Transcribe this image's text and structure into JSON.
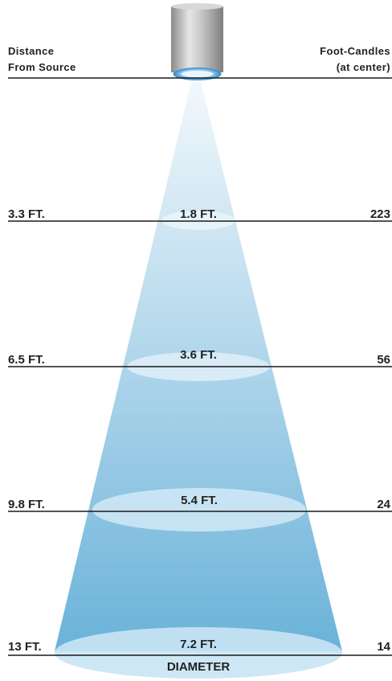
{
  "header": {
    "left_line1": "Distance",
    "left_line2": "From Source",
    "right_line1": "Foot-Candles",
    "right_line2": "(at center)"
  },
  "rows": [
    {
      "distance": "3.3 FT.",
      "diameter": "1.8 FT.",
      "footcandles": "223"
    },
    {
      "distance": "6.5 FT.",
      "diameter": "3.6 FT.",
      "footcandles": "56"
    },
    {
      "distance": "9.8 FT.",
      "diameter": "5.4 FT.",
      "footcandles": "24"
    },
    {
      "distance": "13 FT.",
      "diameter": "7.2 FT.",
      "footcandles": "14"
    }
  ],
  "diameter_caption": "DIAMETER",
  "colors": {
    "beam_top": "#eef5fb",
    "beam_bottom": "#6ab2d9",
    "ring_fill": "#d8ecf7",
    "line": "#1a1a1a",
    "text": "#222222",
    "fixture_body": "#b3b3b3",
    "fixture_lens": "#4aa8e0"
  },
  "icons": [
    "light-fixture-icon"
  ]
}
